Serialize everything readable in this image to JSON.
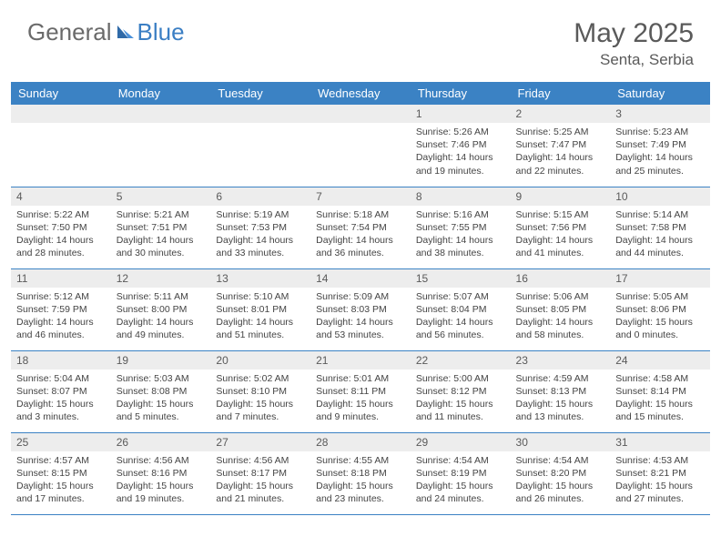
{
  "brand": {
    "part1": "General",
    "part2": "Blue"
  },
  "title": "May 2025",
  "location": "Senta, Serbia",
  "header_bg": "#3b82c4",
  "header_fg": "#ffffff",
  "daynum_bg": "#ededed",
  "weekdays": [
    "Sunday",
    "Monday",
    "Tuesday",
    "Wednesday",
    "Thursday",
    "Friday",
    "Saturday"
  ],
  "weeks": [
    [
      null,
      null,
      null,
      null,
      {
        "n": "1",
        "sr": "5:26 AM",
        "ss": "7:46 PM",
        "dl": "14 hours and 19 minutes."
      },
      {
        "n": "2",
        "sr": "5:25 AM",
        "ss": "7:47 PM",
        "dl": "14 hours and 22 minutes."
      },
      {
        "n": "3",
        "sr": "5:23 AM",
        "ss": "7:49 PM",
        "dl": "14 hours and 25 minutes."
      }
    ],
    [
      {
        "n": "4",
        "sr": "5:22 AM",
        "ss": "7:50 PM",
        "dl": "14 hours and 28 minutes."
      },
      {
        "n": "5",
        "sr": "5:21 AM",
        "ss": "7:51 PM",
        "dl": "14 hours and 30 minutes."
      },
      {
        "n": "6",
        "sr": "5:19 AM",
        "ss": "7:53 PM",
        "dl": "14 hours and 33 minutes."
      },
      {
        "n": "7",
        "sr": "5:18 AM",
        "ss": "7:54 PM",
        "dl": "14 hours and 36 minutes."
      },
      {
        "n": "8",
        "sr": "5:16 AM",
        "ss": "7:55 PM",
        "dl": "14 hours and 38 minutes."
      },
      {
        "n": "9",
        "sr": "5:15 AM",
        "ss": "7:56 PM",
        "dl": "14 hours and 41 minutes."
      },
      {
        "n": "10",
        "sr": "5:14 AM",
        "ss": "7:58 PM",
        "dl": "14 hours and 44 minutes."
      }
    ],
    [
      {
        "n": "11",
        "sr": "5:12 AM",
        "ss": "7:59 PM",
        "dl": "14 hours and 46 minutes."
      },
      {
        "n": "12",
        "sr": "5:11 AM",
        "ss": "8:00 PM",
        "dl": "14 hours and 49 minutes."
      },
      {
        "n": "13",
        "sr": "5:10 AM",
        "ss": "8:01 PM",
        "dl": "14 hours and 51 minutes."
      },
      {
        "n": "14",
        "sr": "5:09 AM",
        "ss": "8:03 PM",
        "dl": "14 hours and 53 minutes."
      },
      {
        "n": "15",
        "sr": "5:07 AM",
        "ss": "8:04 PM",
        "dl": "14 hours and 56 minutes."
      },
      {
        "n": "16",
        "sr": "5:06 AM",
        "ss": "8:05 PM",
        "dl": "14 hours and 58 minutes."
      },
      {
        "n": "17",
        "sr": "5:05 AM",
        "ss": "8:06 PM",
        "dl": "15 hours and 0 minutes."
      }
    ],
    [
      {
        "n": "18",
        "sr": "5:04 AM",
        "ss": "8:07 PM",
        "dl": "15 hours and 3 minutes."
      },
      {
        "n": "19",
        "sr": "5:03 AM",
        "ss": "8:08 PM",
        "dl": "15 hours and 5 minutes."
      },
      {
        "n": "20",
        "sr": "5:02 AM",
        "ss": "8:10 PM",
        "dl": "15 hours and 7 minutes."
      },
      {
        "n": "21",
        "sr": "5:01 AM",
        "ss": "8:11 PM",
        "dl": "15 hours and 9 minutes."
      },
      {
        "n": "22",
        "sr": "5:00 AM",
        "ss": "8:12 PM",
        "dl": "15 hours and 11 minutes."
      },
      {
        "n": "23",
        "sr": "4:59 AM",
        "ss": "8:13 PM",
        "dl": "15 hours and 13 minutes."
      },
      {
        "n": "24",
        "sr": "4:58 AM",
        "ss": "8:14 PM",
        "dl": "15 hours and 15 minutes."
      }
    ],
    [
      {
        "n": "25",
        "sr": "4:57 AM",
        "ss": "8:15 PM",
        "dl": "15 hours and 17 minutes."
      },
      {
        "n": "26",
        "sr": "4:56 AM",
        "ss": "8:16 PM",
        "dl": "15 hours and 19 minutes."
      },
      {
        "n": "27",
        "sr": "4:56 AM",
        "ss": "8:17 PM",
        "dl": "15 hours and 21 minutes."
      },
      {
        "n": "28",
        "sr": "4:55 AM",
        "ss": "8:18 PM",
        "dl": "15 hours and 23 minutes."
      },
      {
        "n": "29",
        "sr": "4:54 AM",
        "ss": "8:19 PM",
        "dl": "15 hours and 24 minutes."
      },
      {
        "n": "30",
        "sr": "4:54 AM",
        "ss": "8:20 PM",
        "dl": "15 hours and 26 minutes."
      },
      {
        "n": "31",
        "sr": "4:53 AM",
        "ss": "8:21 PM",
        "dl": "15 hours and 27 minutes."
      }
    ]
  ],
  "labels": {
    "sunrise": "Sunrise:",
    "sunset": "Sunset:",
    "daylight": "Daylight:"
  }
}
